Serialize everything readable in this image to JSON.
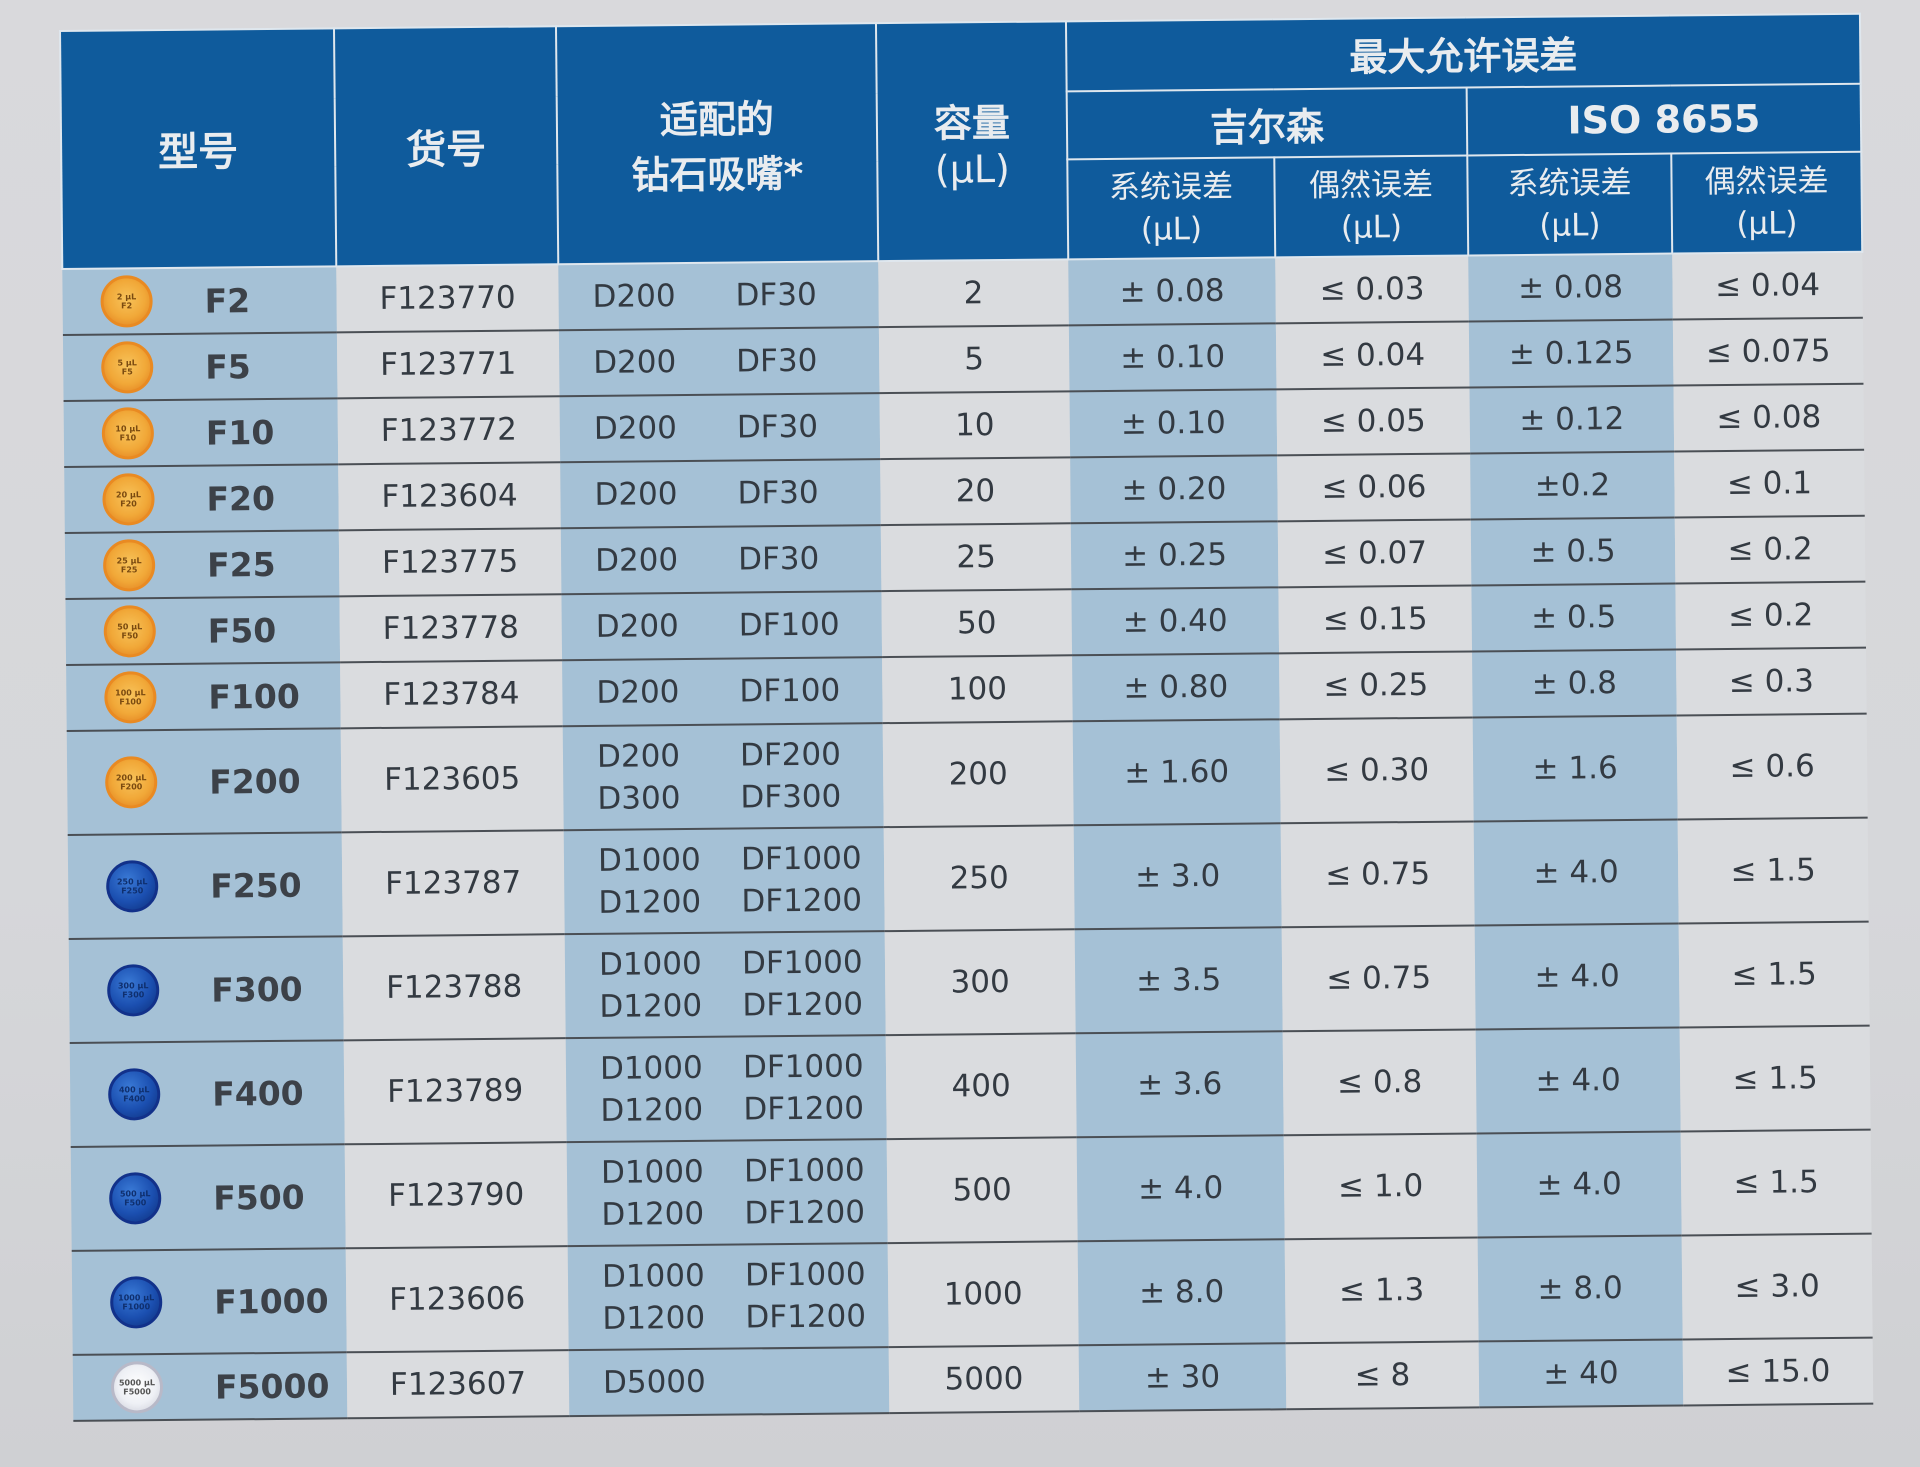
{
  "header": {
    "model": "型号",
    "catalog_no": "货号",
    "tips_line1": "适配的",
    "tips_line2": "钻石吸嘴*",
    "volume": "容量",
    "volume_unit": "(µL)",
    "max_error": "最大允许误差",
    "gilson": "吉尔森",
    "iso": "ISO 8655",
    "systematic": "系统误差",
    "random": "偶然误差",
    "unit": "(µL)"
  },
  "colors": {
    "header_bg": "#0f5b9c",
    "shade_col": "#a5c1d6",
    "light_col": "#dadcdf",
    "badge_orange": "#f1a838",
    "badge_blue": "#1b4fb0",
    "badge_clear": "#eef0f5"
  },
  "rows": [
    {
      "badge": "orange",
      "badge_text": "2 µL",
      "badge_model": "F2",
      "model": "F2",
      "catalog": "F123770",
      "tips": [
        "D200",
        "DF30"
      ],
      "volume": "2",
      "gilson_sys": "± 0.08",
      "gilson_rand": "≤ 0.03",
      "iso_sys": "± 0.08",
      "iso_rand": "≤ 0.04"
    },
    {
      "badge": "orange",
      "badge_text": "5 µL",
      "badge_model": "F5",
      "model": "F5",
      "catalog": "F123771",
      "tips": [
        "D200",
        "DF30"
      ],
      "volume": "5",
      "gilson_sys": "± 0.10",
      "gilson_rand": "≤ 0.04",
      "iso_sys": "± 0.125",
      "iso_rand": "≤ 0.075"
    },
    {
      "badge": "orange",
      "badge_text": "10 µL",
      "badge_model": "F10",
      "model": "F10",
      "catalog": "F123772",
      "tips": [
        "D200",
        "DF30"
      ],
      "volume": "10",
      "gilson_sys": "± 0.10",
      "gilson_rand": "≤ 0.05",
      "iso_sys": "± 0.12",
      "iso_rand": "≤ 0.08"
    },
    {
      "badge": "orange",
      "badge_text": "20 µL",
      "badge_model": "F20",
      "model": "F20",
      "catalog": "F123604",
      "tips": [
        "D200",
        "DF30"
      ],
      "volume": "20",
      "gilson_sys": "± 0.20",
      "gilson_rand": "≤ 0.06",
      "iso_sys": "±0.2",
      "iso_rand": "≤ 0.1"
    },
    {
      "badge": "orange",
      "badge_text": "25 µL",
      "badge_model": "F25",
      "model": "F25",
      "catalog": "F123775",
      "tips": [
        "D200",
        "DF30"
      ],
      "volume": "25",
      "gilson_sys": "± 0.25",
      "gilson_rand": "≤ 0.07",
      "iso_sys": "± 0.5",
      "iso_rand": "≤ 0.2"
    },
    {
      "badge": "orange",
      "badge_text": "50 µL",
      "badge_model": "F50",
      "model": "F50",
      "catalog": "F123778",
      "tips": [
        "D200",
        "DF100"
      ],
      "volume": "50",
      "gilson_sys": "± 0.40",
      "gilson_rand": "≤ 0.15",
      "iso_sys": "± 0.5",
      "iso_rand": "≤ 0.2"
    },
    {
      "badge": "orange",
      "badge_text": "100 µL",
      "badge_model": "F100",
      "model": "F100",
      "catalog": "F123784",
      "tips": [
        "D200",
        "DF100"
      ],
      "volume": "100",
      "gilson_sys": "± 0.80",
      "gilson_rand": "≤ 0.25",
      "iso_sys": "± 0.8",
      "iso_rand": "≤ 0.3"
    },
    {
      "badge": "orange",
      "badge_text": "200 µL",
      "badge_model": "F200",
      "model": "F200",
      "catalog": "F123605",
      "tips": [
        "D200",
        "DF200",
        "D300",
        "DF300"
      ],
      "volume": "200",
      "gilson_sys": "± 1.60",
      "gilson_rand": "≤ 0.30",
      "iso_sys": "± 1.6",
      "iso_rand": "≤ 0.6"
    },
    {
      "badge": "blue",
      "badge_text": "250 µL",
      "badge_model": "F250",
      "model": "F250",
      "catalog": "F123787",
      "tips": [
        "D1000",
        "DF1000",
        "D1200",
        "DF1200"
      ],
      "volume": "250",
      "gilson_sys": "± 3.0",
      "gilson_rand": "≤ 0.75",
      "iso_sys": "± 4.0",
      "iso_rand": "≤ 1.5"
    },
    {
      "badge": "blue",
      "badge_text": "300 µL",
      "badge_model": "F300",
      "model": "F300",
      "catalog": "F123788",
      "tips": [
        "D1000",
        "DF1000",
        "D1200",
        "DF1200"
      ],
      "volume": "300",
      "gilson_sys": "± 3.5",
      "gilson_rand": "≤ 0.75",
      "iso_sys": "± 4.0",
      "iso_rand": "≤ 1.5"
    },
    {
      "badge": "blue",
      "badge_text": "400 µL",
      "badge_model": "F400",
      "model": "F400",
      "catalog": "F123789",
      "tips": [
        "D1000",
        "DF1000",
        "D1200",
        "DF1200"
      ],
      "volume": "400",
      "gilson_sys": "± 3.6",
      "gilson_rand": "≤ 0.8",
      "iso_sys": "± 4.0",
      "iso_rand": "≤ 1.5"
    },
    {
      "badge": "blue",
      "badge_text": "500 µL",
      "badge_model": "F500",
      "model": "F500",
      "catalog": "F123790",
      "tips": [
        "D1000",
        "DF1000",
        "D1200",
        "DF1200"
      ],
      "volume": "500",
      "gilson_sys": "± 4.0",
      "gilson_rand": "≤ 1.0",
      "iso_sys": "± 4.0",
      "iso_rand": "≤ 1.5"
    },
    {
      "badge": "blue",
      "badge_text": "1000 µL",
      "badge_model": "F1000",
      "model": "F1000",
      "catalog": "F123606",
      "tips": [
        "D1000",
        "DF1000",
        "D1200",
        "DF1200"
      ],
      "volume": "1000",
      "gilson_sys": "± 8.0",
      "gilson_rand": "≤ 1.3",
      "iso_sys": "± 8.0",
      "iso_rand": "≤ 3.0"
    },
    {
      "badge": "clear",
      "badge_text": "5000 µL",
      "badge_model": "F5000",
      "model": "F5000",
      "catalog": "F123607",
      "tips": [
        "D5000",
        ""
      ],
      "volume": "5000",
      "gilson_sys": "± 30",
      "gilson_rand": "≤ 8",
      "iso_sys": "± 40",
      "iso_rand": "≤ 15.0"
    }
  ]
}
